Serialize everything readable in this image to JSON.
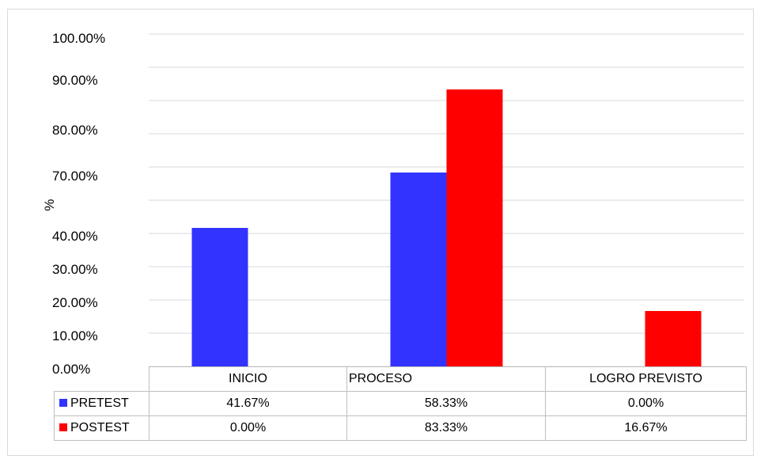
{
  "chart_data": {
    "type": "bar",
    "ylabel": "%",
    "y_tick_labels": [
      "0.00%",
      "10.00%",
      "20.00%",
      "30.00%",
      "40.00%",
      "70.00%",
      "80.00%",
      "90.00%",
      "100.00%"
    ],
    "categories": [
      "INICIO",
      "PROCESO",
      "LOGRO PREVISTO"
    ],
    "series": [
      {
        "name": "PRETEST",
        "values": [
          41.67,
          58.33,
          0.0
        ],
        "labels": [
          "41.67%",
          "58.33%",
          "0.00%"
        ],
        "color": "#3333ff"
      },
      {
        "name": "POSTEST",
        "values": [
          0.0,
          83.33,
          16.67
        ],
        "labels": [
          "0.00%",
          "83.33%",
          "16.67%"
        ],
        "color": "#ff0000"
      }
    ],
    "ylim": [
      0,
      100
    ],
    "grid": true,
    "legend": "table-below"
  }
}
